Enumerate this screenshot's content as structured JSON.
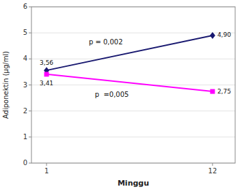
{
  "chart_data": {
    "type": "line",
    "x": [
      1,
      12
    ],
    "series": [
      {
        "color": "#191970",
        "marker": "diamond",
        "values": [
          3.56,
          4.9
        ],
        "value_labels": [
          "3,56",
          "4,90"
        ]
      },
      {
        "color": "#FF00FF",
        "marker": "square",
        "values": [
          3.41,
          2.75
        ],
        "value_labels": [
          "3,41",
          "2,75"
        ]
      }
    ],
    "data_labels": true,
    "annotations": [
      {
        "text": "p = 0,002",
        "x": 3.8,
        "y": 4.55
      },
      {
        "text": "p  =0,005",
        "x": 4.2,
        "y": 2.55
      }
    ],
    "x_label": "Minggu",
    "y_label": "Adiponektin (µg/ml)",
    "xlim": [
      0.0,
      13.5
    ],
    "ylim": [
      0,
      6
    ],
    "xticks": [
      1,
      12
    ],
    "yticks": [
      0,
      1,
      2,
      3,
      4,
      5,
      6
    ],
    "grid": true
  }
}
